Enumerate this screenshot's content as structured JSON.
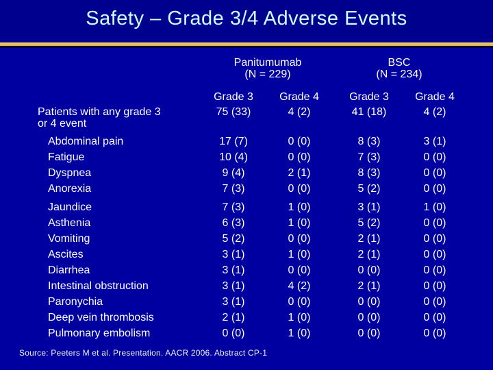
{
  "title": "Safety – Grade 3/4 Adverse Events",
  "columns": {
    "groups": [
      {
        "name": "Panitumumab",
        "n": "(N = 229)"
      },
      {
        "name": "BSC",
        "n": "(N = 234)"
      }
    ],
    "grades": [
      "Grade 3",
      "Grade 4",
      "Grade 3",
      "Grade 4"
    ]
  },
  "rows": [
    {
      "label": [
        "Patients with any grade 3",
        "or 4 event"
      ],
      "first": true,
      "indent": false,
      "values": [
        "75 (33)",
        "4 (2)",
        "41 (18)",
        "4 (2)"
      ]
    },
    {
      "label": "Abdominal pain",
      "indent": true,
      "values": [
        "17 (7)",
        "0 (0)",
        "8 (3)",
        "3 (1)"
      ]
    },
    {
      "label": "Fatigue",
      "indent": true,
      "values": [
        "10 (4)",
        "0 (0)",
        "7 (3)",
        "0 (0)"
      ]
    },
    {
      "label": "Dyspnea",
      "indent": true,
      "values": [
        "9 (4)",
        "2 (1)",
        "8 (3)",
        "0 (0)"
      ]
    },
    {
      "label": "Anorexia",
      "indent": true,
      "values": [
        "7 (3)",
        "0 (0)",
        "5 (2)",
        "0 (0)"
      ]
    },
    {
      "label": "Jaundice",
      "indent": true,
      "gap": true,
      "values": [
        "7 (3)",
        "1 (0)",
        "3 (1)",
        "1 (0)"
      ]
    },
    {
      "label": "Asthenia",
      "indent": true,
      "values": [
        "6 (3)",
        "1 (0)",
        "5 (2)",
        "0 (0)"
      ]
    },
    {
      "label": "Vomiting",
      "indent": true,
      "values": [
        "5 (2)",
        "0 (0)",
        "2 (1)",
        "0 (0)"
      ]
    },
    {
      "label": "Ascites",
      "indent": true,
      "values": [
        "3 (1)",
        "1 (0)",
        "2 (1)",
        "0 (0)"
      ]
    },
    {
      "label": "Diarrhea",
      "indent": true,
      "values": [
        "3 (1)",
        "0 (0)",
        "0 (0)",
        "0 (0)"
      ]
    },
    {
      "label": "Intestinal obstruction",
      "indent": true,
      "values": [
        "3 (1)",
        "4 (2)",
        "2 (1)",
        "0 (0)"
      ]
    },
    {
      "label": "Paronychia",
      "indent": true,
      "values": [
        "3 (1)",
        "0 (0)",
        "0 (0)",
        "0 (0)"
      ]
    },
    {
      "label": "Deep vein thrombosis",
      "indent": true,
      "values": [
        "2 (1)",
        "1 (0)",
        "0 (0)",
        "0 (0)"
      ]
    },
    {
      "label": "Pulmonary embolism",
      "indent": true,
      "values": [
        "0 (0)",
        "1 (0)",
        "0 (0)",
        "0 (0)"
      ]
    }
  ],
  "source": "Source: Peeters M et al. Presentation. AACR 2006. Abstract CP-1",
  "colors": {
    "background": "#0000A0",
    "title_band": "#00008E",
    "title_text": "#CCFFFF",
    "body_text": "#FFFFFF",
    "gold_rule_top": "#F2D687",
    "gold_rule_bottom": "#D8AC4E",
    "gold_rule_edge": "#000038"
  }
}
